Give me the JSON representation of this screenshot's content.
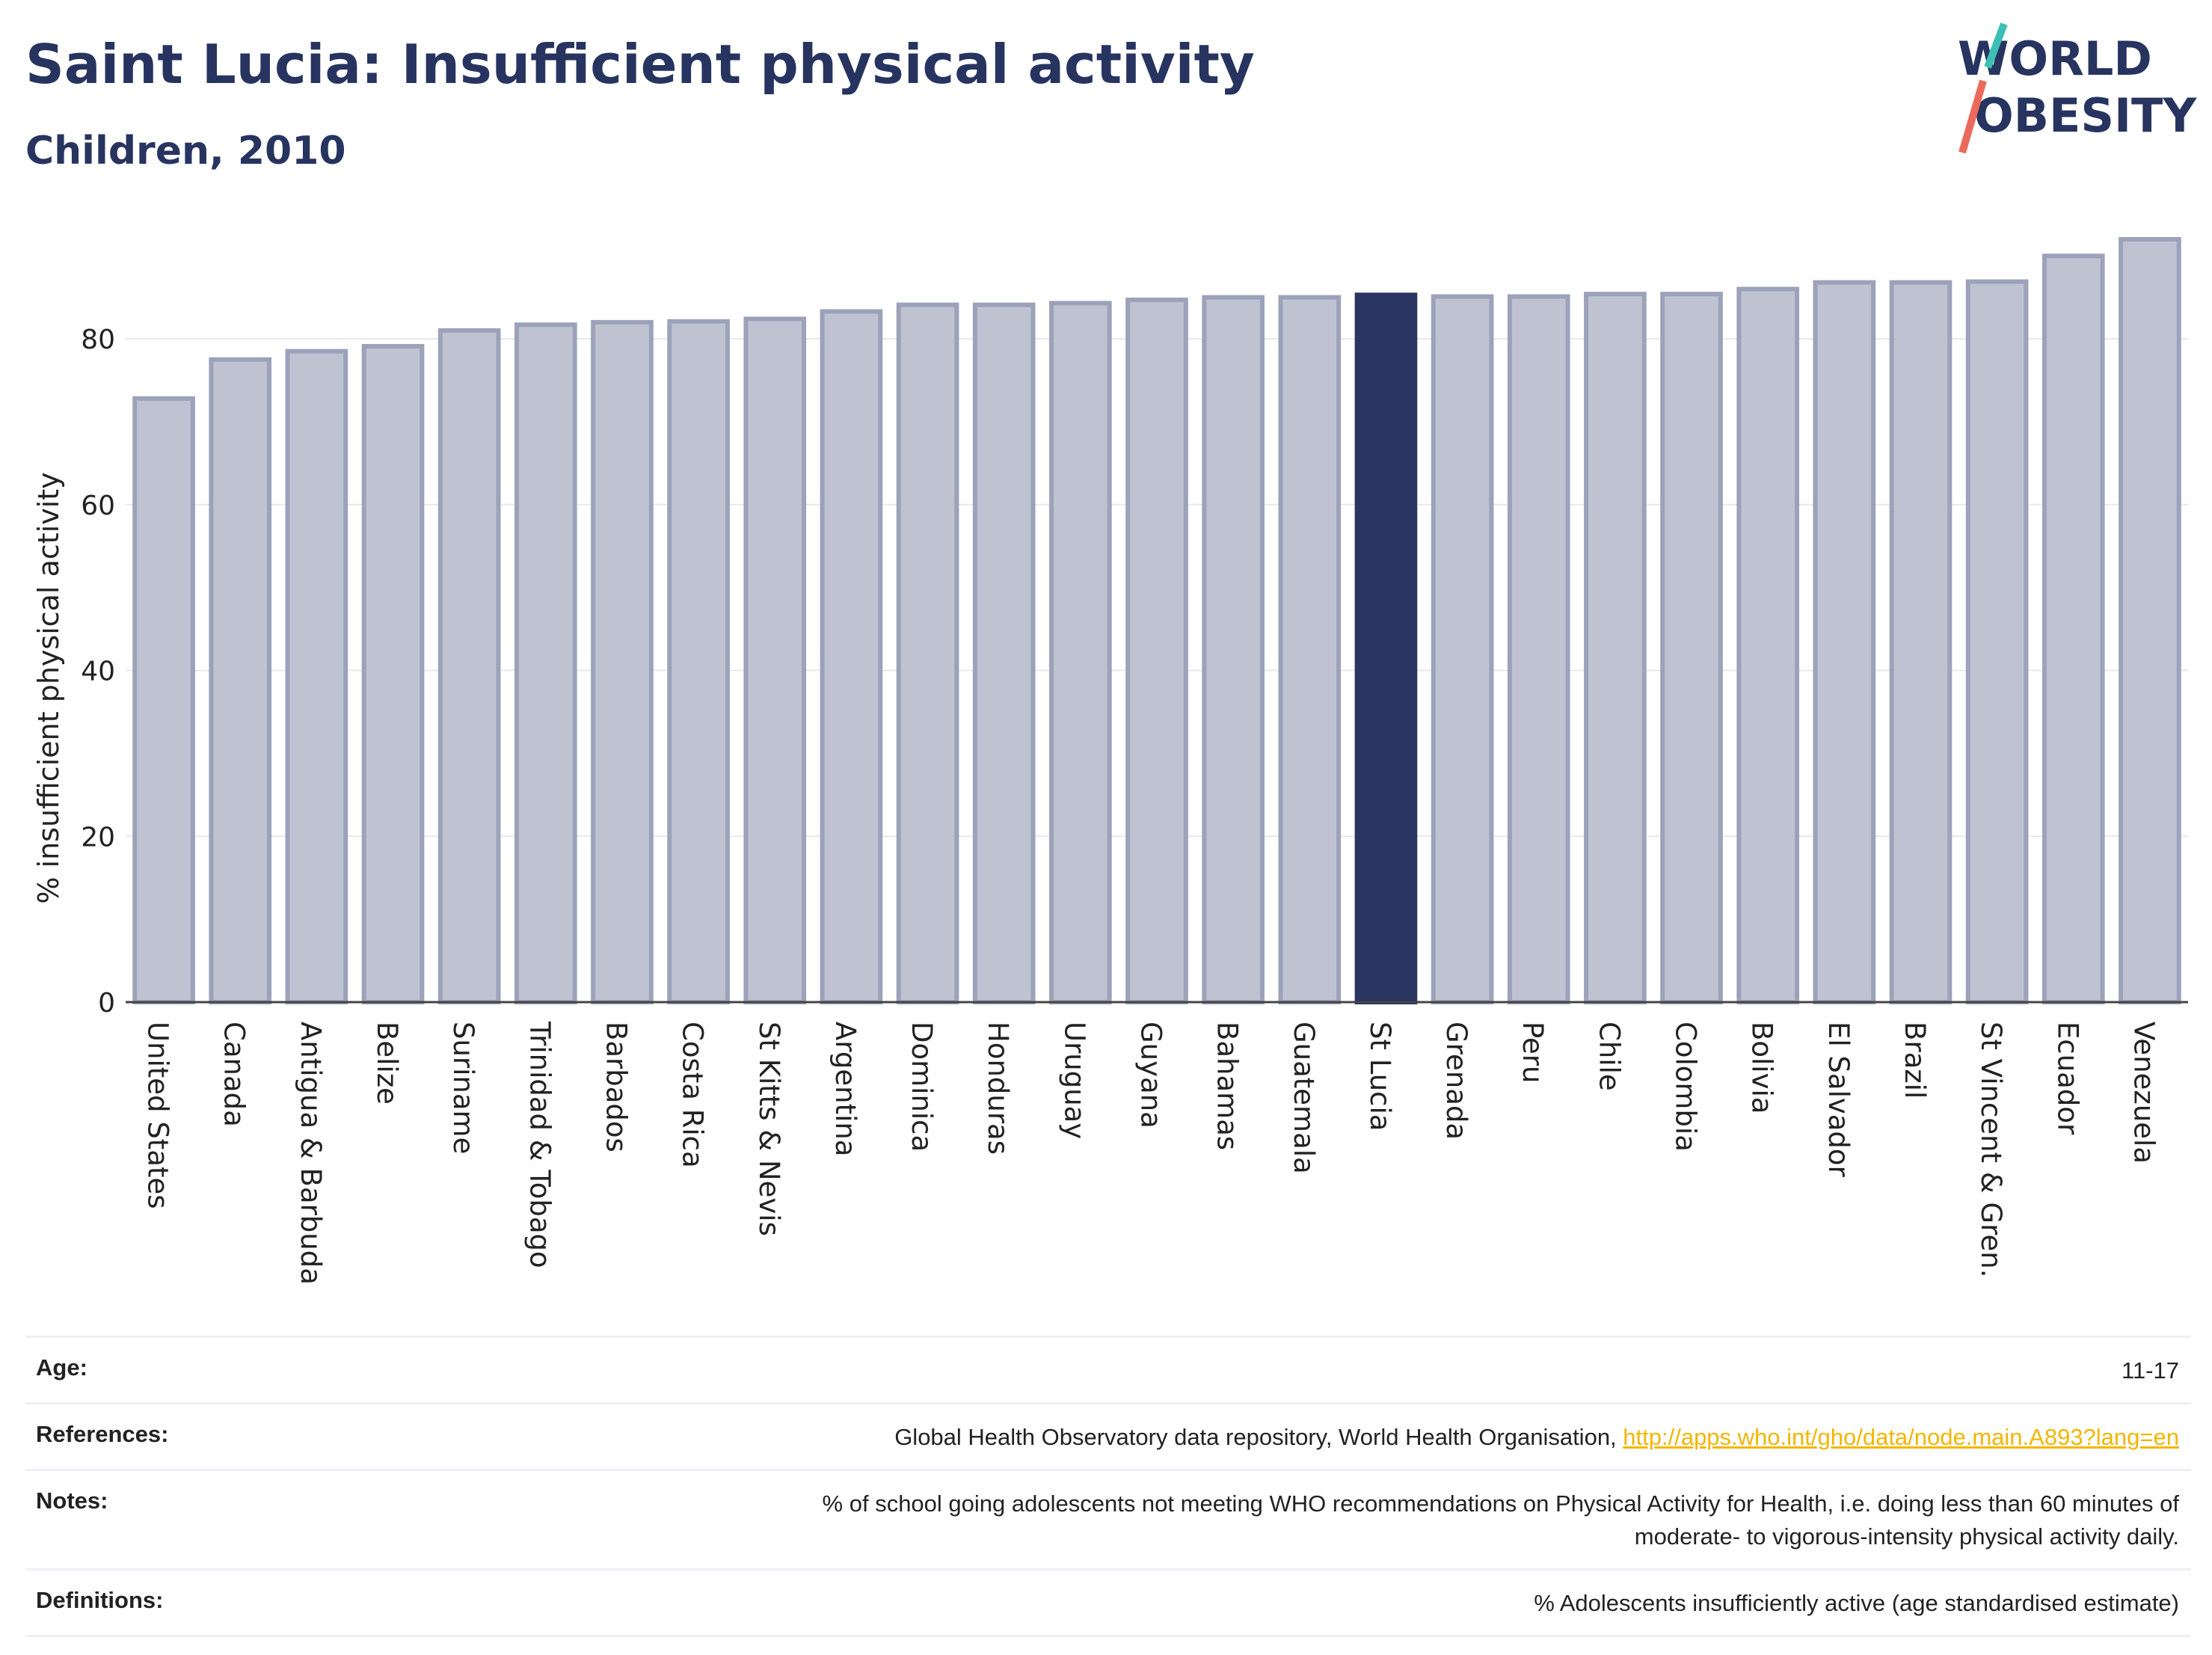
{
  "header": {
    "title": "Saint Lucia: Insufficient physical activity",
    "subtitle": "Children, 2010"
  },
  "logo": {
    "line1": "WORLD",
    "line2": "OBESITY",
    "accent_teal": "#3bbfb4",
    "accent_coral": "#ea6b5b"
  },
  "colors": {
    "highlight": "#2a3561",
    "bar_fill": "#bfc3d1",
    "bar_stroke": "#9ba2b9",
    "axis": "#444444",
    "grid": "#e8e8ee"
  },
  "chart_data": {
    "type": "bar",
    "ylabel": "% insufficient physical activity",
    "xlabel": "",
    "ylim": [
      0,
      92
    ],
    "yticks": [
      0,
      20,
      40,
      60,
      80
    ],
    "grid": true,
    "highlight": "St Lucia",
    "categories": [
      "United States",
      "Canada",
      "Antigua & Barbuda",
      "Belize",
      "Suriname",
      "Trinidad & Tobago",
      "Barbados",
      "Costa Rica",
      "St Kitts & Nevis",
      "Argentina",
      "Dominica",
      "Honduras",
      "Uruguay",
      "Guyana",
      "Bahamas",
      "Guatemala",
      "St Lucia",
      "Grenada",
      "Peru",
      "Chile",
      "Colombia",
      "Bolivia",
      "El Salvador",
      "Brazil",
      "St Vincent & Gren.",
      "Ecuador",
      "Venezuela"
    ],
    "values": [
      72.8,
      77.5,
      78.5,
      79.1,
      81.0,
      81.7,
      82.0,
      82.1,
      82.4,
      83.3,
      84.1,
      84.1,
      84.3,
      84.7,
      85.0,
      85.0,
      85.3,
      85.1,
      85.1,
      85.4,
      85.4,
      86.0,
      86.8,
      86.8,
      86.9,
      90.0,
      92.0
    ]
  },
  "info": {
    "age_label": "Age:",
    "age_value": "11-17",
    "references_label": "References:",
    "references_text": "Global Health Observatory data repository, World Health Organisation, ",
    "references_link": "http://apps.who.int/gho/data/node.main.A893?lang=en",
    "notes_label": "Notes:",
    "notes_line1": "% of school going adolescents not meeting WHO recommendations on Physical Activity for Health, i.e. doing less than 60 minutes of",
    "notes_line2": "moderate- to vigorous-intensity physical activity daily.",
    "definitions_label": "Definitions:",
    "definitions_value": "% Adolescents insufficiently active (age standardised estimate)"
  }
}
